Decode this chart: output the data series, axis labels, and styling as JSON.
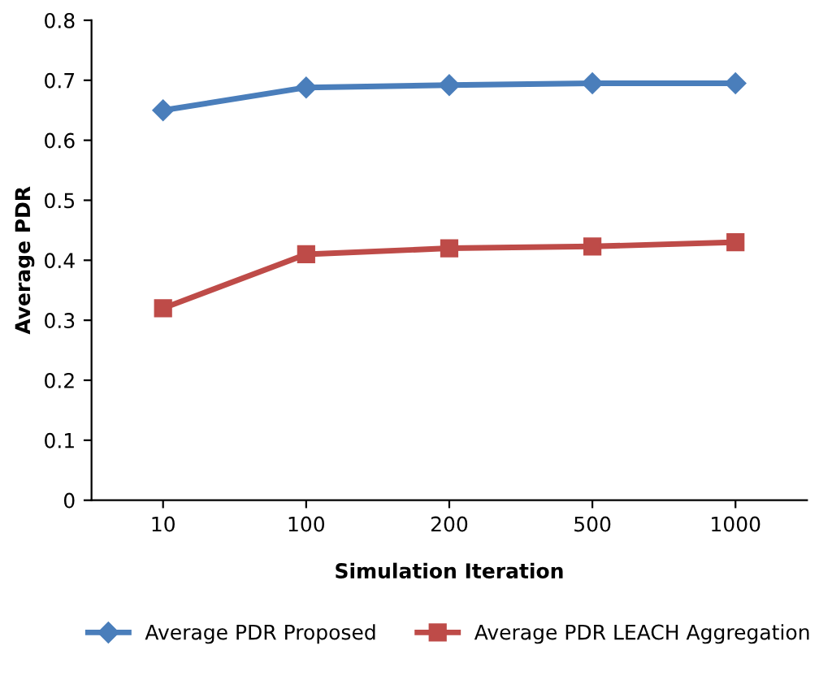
{
  "chart_data": {
    "type": "line",
    "xlabel": "Simulation Iteration",
    "ylabel": "Average PDR",
    "categories": [
      "10",
      "100",
      "200",
      "500",
      "1000"
    ],
    "series": [
      {
        "name": "Average PDR Proposed",
        "color": "#4a7ebb",
        "marker": "diamond",
        "values": [
          0.65,
          0.688,
          0.692,
          0.695,
          0.695
        ]
      },
      {
        "name": "Average PDR LEACH Aggregation",
        "color": "#be4b48",
        "marker": "square",
        "values": [
          0.32,
          0.41,
          0.42,
          0.423,
          0.43
        ]
      }
    ],
    "ylim": [
      0,
      0.8
    ],
    "yticks": [
      0,
      0.1,
      0.2,
      0.3,
      0.4,
      0.5,
      0.6,
      0.7,
      0.8
    ],
    "grid": false,
    "legend": "bottom",
    "line_style": "solid"
  }
}
